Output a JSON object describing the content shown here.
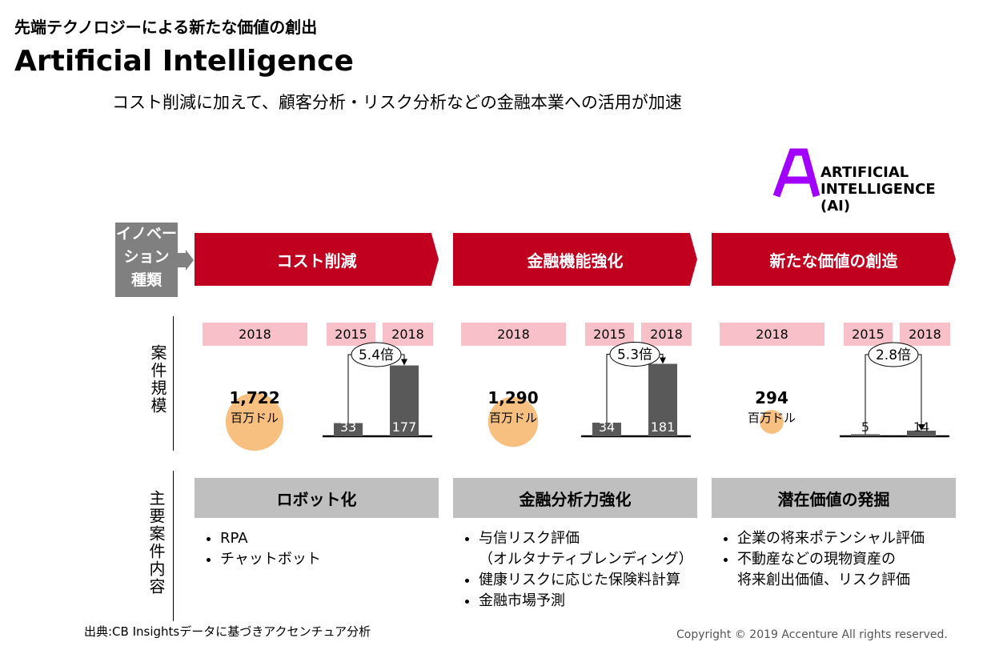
{
  "header": {
    "subtitle": "先端テクノロジーによる新たな価値の創出",
    "title": "Artificial Intelligence",
    "lead": "コスト削減に加えて、顧客分析・リスク分析などの金融本業への活用が加速"
  },
  "logo": {
    "lines": [
      "ARTIFICIAL",
      "INTELLIGENCE",
      "(AI)"
    ]
  },
  "row_labels": {
    "innovation": [
      "イノベー",
      "ション",
      "種類"
    ],
    "scale": "案件規模",
    "content": "主要案件内容"
  },
  "columns": [
    {
      "category": "コスト削減",
      "bubble": {
        "year": "2018",
        "value": 1722,
        "label": "1,722",
        "unit": "百万ドル"
      },
      "growth": {
        "years": [
          "2015",
          "2018"
        ],
        "values": [
          33,
          177
        ],
        "multiplier": "5.4倍"
      },
      "theme": "ロボット化",
      "items": [
        [
          "RPA"
        ],
        [
          "チャットボット"
        ]
      ]
    },
    {
      "category": "金融機能強化",
      "bubble": {
        "year": "2018",
        "value": 1290,
        "label": "1,290",
        "unit": "百万ドル"
      },
      "growth": {
        "years": [
          "2015",
          "2018"
        ],
        "values": [
          34,
          181
        ],
        "multiplier": "5.3倍"
      },
      "theme": "金融分析力強化",
      "items": [
        [
          "与信リスク評価",
          "（オルタナティブレンディング）"
        ],
        [
          "健康リスクに応じた保険料計算"
        ],
        [
          "金融市場予測"
        ]
      ]
    },
    {
      "category": "新たな価値の創造",
      "bubble": {
        "year": "2018",
        "value": 294,
        "label": "294",
        "unit": "百万ドル"
      },
      "growth": {
        "years": [
          "2015",
          "2018"
        ],
        "values": [
          5,
          14
        ],
        "multiplier": "2.8倍"
      },
      "theme": "潜在価値の発掘",
      "items": [
        [
          "企業の将来ポテンシャル評価"
        ],
        [
          "不動産などの現物資産の",
          "将来創出価値、リスク評価"
        ]
      ]
    }
  ],
  "footer": {
    "source": "出典:CB Insightsデータに基づきアクセンチュア分析",
    "copyright": "Copyright © 2019 Accenture  All rights reserved."
  }
}
